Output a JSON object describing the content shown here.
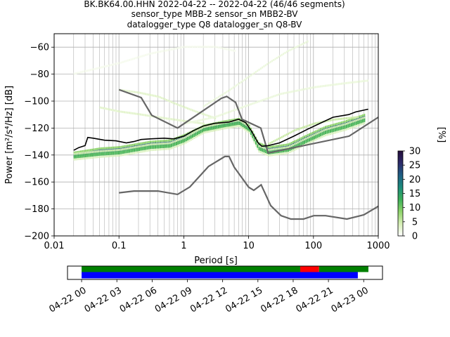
{
  "chart_data": [
    {
      "type": "heatmap",
      "title_lines": [
        "BK.BK64.00.HHN   2022-04-22 -- 2022-04-22  (46/46 segments)",
        "sensor_type MBB-2 sensor_sn MBB2-BV",
        "datalogger_type Q8 datalogger_sn Q8-BV"
      ],
      "xlabel": "Period [s]",
      "ylabel": "Power [m²/s⁴/Hz] [dB]",
      "xscale": "log",
      "xlim": [
        0.01,
        1000
      ],
      "ylim": [
        -200,
        -50
      ],
      "x_ticks": [
        0.01,
        0.1,
        1,
        10,
        100,
        1000
      ],
      "x_tick_labels": [
        "0.01",
        "0.1",
        "1",
        "10",
        "100",
        "1000"
      ],
      "y_ticks": [
        -200,
        -180,
        -160,
        -140,
        -120,
        -100,
        -80,
        -60
      ],
      "y_tick_labels": [
        "−200",
        "−180",
        "−160",
        "−140",
        "−120",
        "−100",
        "−80",
        "−60"
      ],
      "grid": true,
      "colorbar": {
        "label": "[%]",
        "min": 0,
        "max": 30,
        "ticks": [
          0,
          5,
          10,
          15,
          20,
          25,
          30
        ],
        "tick_labels": [
          "0",
          "5",
          "10",
          "15",
          "20",
          "25",
          "30"
        ],
        "colors": [
          "#ffffff",
          "#d7efb6",
          "#8fd46a",
          "#3cb058",
          "#1c8c7c",
          "#1f5e84",
          "#2c2a6a",
          "#250d3c"
        ]
      },
      "noise_models": {
        "color": "#666666",
        "high": [
          [
            0.1,
            -91.5
          ],
          [
            0.22,
            -97.4
          ],
          [
            0.32,
            -110.5
          ],
          [
            0.8,
            -120
          ],
          [
            3.8,
            -97.9
          ],
          [
            4.6,
            -96.5
          ],
          [
            6.3,
            -101
          ],
          [
            7.9,
            -113.5
          ],
          [
            15.4,
            -120
          ],
          [
            20,
            -138.5
          ],
          [
            354.8,
            -126
          ],
          [
            1000,
            -112
          ]
        ],
        "low": [
          [
            0.1,
            -168
          ],
          [
            0.17,
            -166.7
          ],
          [
            0.4,
            -166.7
          ],
          [
            0.8,
            -169.2
          ],
          [
            1.24,
            -163.7
          ],
          [
            2.4,
            -148.5
          ],
          [
            4.3,
            -141.1
          ],
          [
            5.0,
            -141.1
          ],
          [
            6.0,
            -149
          ],
          [
            10,
            -163.8
          ],
          [
            12,
            -166.2
          ],
          [
            15.6,
            -162.1
          ],
          [
            21.9,
            -177.5
          ],
          [
            31.6,
            -185
          ],
          [
            45,
            -187.5
          ],
          [
            70,
            -187.5
          ],
          [
            101,
            -185
          ],
          [
            154,
            -185
          ],
          [
            328,
            -187.5
          ],
          [
            600,
            -184.4
          ],
          [
            1000,
            -178
          ]
        ]
      },
      "mode_curve": {
        "color": "#000000",
        "points": [
          [
            0.02,
            -136.5
          ],
          [
            0.024,
            -134.5
          ],
          [
            0.03,
            -133
          ],
          [
            0.033,
            -127
          ],
          [
            0.04,
            -127.5
          ],
          [
            0.06,
            -129
          ],
          [
            0.09,
            -129.5
          ],
          [
            0.13,
            -131
          ],
          [
            0.17,
            -130
          ],
          [
            0.22,
            -128.5
          ],
          [
            0.3,
            -128
          ],
          [
            0.5,
            -127.5
          ],
          [
            0.7,
            -128
          ],
          [
            1.0,
            -126
          ],
          [
            1.4,
            -122
          ],
          [
            2.0,
            -118.5
          ],
          [
            3.0,
            -116.5
          ],
          [
            5.0,
            -115.5
          ],
          [
            7.0,
            -113.5
          ],
          [
            9.0,
            -116
          ],
          [
            11,
            -122
          ],
          [
            14,
            -131
          ],
          [
            16,
            -133.5
          ],
          [
            20,
            -133
          ],
          [
            30,
            -131
          ],
          [
            50,
            -126
          ],
          [
            80,
            -121
          ],
          [
            120,
            -117
          ],
          [
            200,
            -112
          ],
          [
            350,
            -110
          ],
          [
            450,
            -108
          ],
          [
            700,
            -106
          ]
        ]
      },
      "distribution_bands": [
        {
          "points": [
            [
              0.02,
              -140
            ],
            [
              0.05,
              -137
            ],
            [
              0.1,
              -136
            ],
            [
              0.3,
              -132
            ],
            [
              0.6,
              -131
            ],
            [
              1,
              -127
            ],
            [
              2,
              -120
            ],
            [
              4,
              -117
            ],
            [
              7,
              -115
            ],
            [
              10,
              -120
            ],
            [
              14,
              -133
            ],
            [
              20,
              -136
            ],
            [
              40,
              -134
            ],
            [
              80,
              -127
            ],
            [
              150,
              -121
            ],
            [
              300,
              -117
            ],
            [
              600,
              -112
            ]
          ],
          "percent": 22
        },
        {
          "points": [
            [
              0.02,
              -141
            ],
            [
              0.05,
              -139
            ],
            [
              0.1,
              -138
            ],
            [
              0.3,
              -134
            ],
            [
              0.6,
              -133
            ],
            [
              1,
              -129
            ],
            [
              2,
              -121
            ],
            [
              4,
              -118
            ],
            [
              7,
              -116
            ],
            [
              10,
              -121
            ],
            [
              14,
              -135
            ],
            [
              20,
              -138
            ],
            [
              40,
              -136
            ],
            [
              80,
              -129
            ],
            [
              150,
              -123
            ],
            [
              300,
              -119
            ],
            [
              600,
              -114
            ]
          ],
          "percent": 12
        },
        {
          "points": [
            [
              0.1,
              -92
            ],
            [
              0.2,
              -94
            ],
            [
              0.4,
              -97
            ],
            [
              0.8,
              -103
            ],
            [
              1.5,
              -108
            ],
            [
              3,
              -113
            ]
          ],
          "percent": 3
        },
        {
          "points": [
            [
              0.05,
              -105
            ],
            [
              0.1,
              -108
            ],
            [
              0.2,
              -110
            ],
            [
              0.5,
              -113
            ],
            [
              1,
              -115
            ],
            [
              2,
              -117
            ]
          ],
          "percent": 3
        },
        {
          "points": [
            [
              1,
              -117
            ],
            [
              3,
              -112
            ],
            [
              10,
              -103
            ],
            [
              30,
              -95
            ],
            [
              100,
              -90
            ],
            [
              300,
              -87
            ],
            [
              700,
              -85
            ]
          ],
          "percent": 2
        },
        {
          "points": [
            [
              2,
              -104
            ],
            [
              5,
              -92
            ],
            [
              10,
              -82
            ],
            [
              20,
              -72
            ],
            [
              40,
              -63
            ],
            [
              80,
              -56
            ]
          ],
          "percent": 2
        },
        {
          "points": [
            [
              20,
              -132
            ],
            [
              50,
              -122
            ],
            [
              100,
              -117
            ],
            [
              200,
              -114
            ],
            [
              500,
              -112
            ]
          ],
          "percent": 5
        },
        {
          "points": [
            [
              0.02,
              -80
            ],
            [
              0.1,
              -72
            ],
            [
              0.3,
              -65
            ],
            [
              1,
              -60
            ],
            [
              3,
              -60
            ],
            [
              6,
              -63
            ]
          ],
          "percent": 1
        }
      ]
    },
    {
      "type": "timeline",
      "x_tick_labels": [
        "04-22 00",
        "04-22 03",
        "04-22 06",
        "04-22 09",
        "04-22 12",
        "04-22 15",
        "04-22 18",
        "04-22 21",
        "04-23 00"
      ],
      "x_ticks_hours": [
        0,
        3,
        6,
        9,
        12,
        15,
        18,
        21,
        24
      ],
      "xlim_hours": [
        -1.2,
        25.6
      ],
      "top_segments": [
        {
          "start": 0,
          "end": 18.6,
          "color": "#008000"
        },
        {
          "start": 18.6,
          "end": 20.2,
          "color": "#ff0000"
        },
        {
          "start": 20.2,
          "end": 24.4,
          "color": "#008000"
        }
      ],
      "bottom_segments": [
        {
          "start": 0,
          "end": 23.5,
          "color": "#0000ff"
        }
      ]
    }
  ]
}
